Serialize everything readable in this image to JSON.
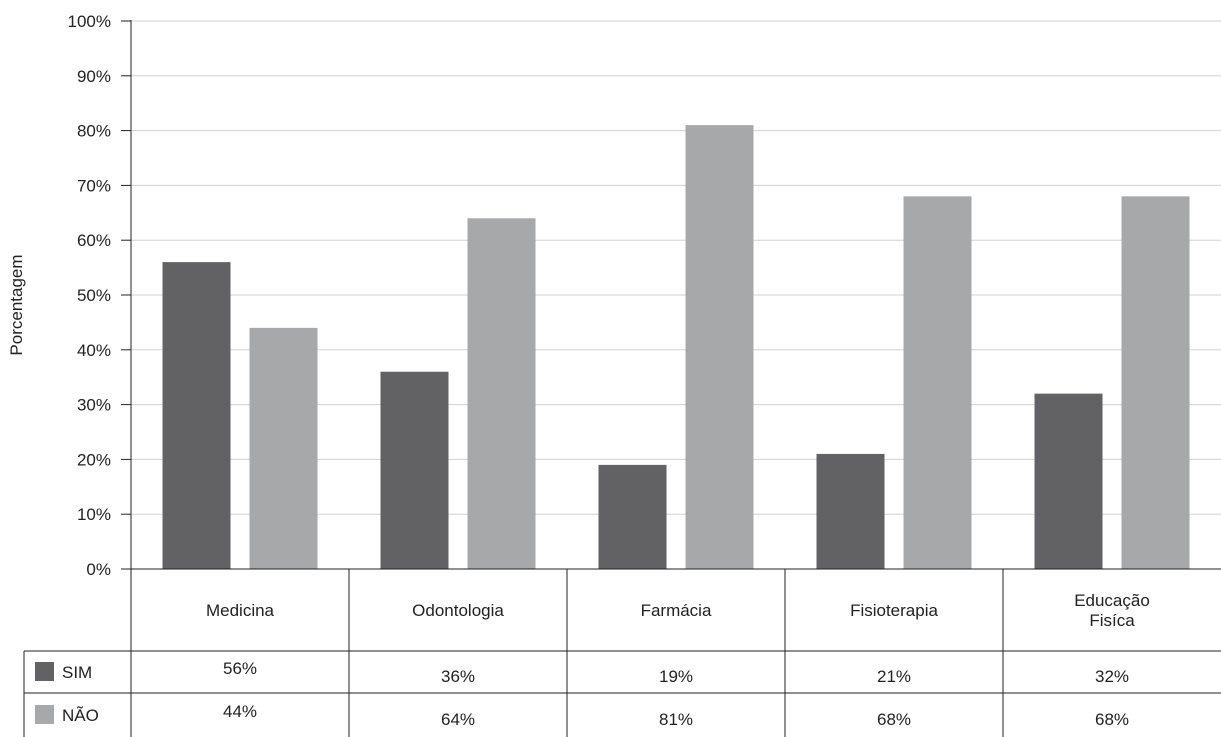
{
  "chart_data": {
    "type": "bar",
    "ylabel": "Porcentagem",
    "ylim": [
      0,
      100
    ],
    "yticks": [
      "0%",
      "10%",
      "20%",
      "30%",
      "40%",
      "50%",
      "60%",
      "70%",
      "80%",
      "90%",
      "100%"
    ],
    "categories": [
      [
        "Medicina"
      ],
      [
        "Odontologia"
      ],
      [
        "Farmácia"
      ],
      [
        "Fisioterapia"
      ],
      [
        "Educação",
        "Fisíca"
      ]
    ],
    "series": [
      {
        "name": "SIM",
        "color": "#626265",
        "values": [
          56,
          36,
          19,
          21,
          32
        ],
        "labels": [
          "56%",
          "36%",
          "19%",
          "21%",
          "32%"
        ]
      },
      {
        "name": "NÃO",
        "color": "#a7a8aa",
        "values": [
          44,
          64,
          81,
          68,
          68
        ],
        "labels": [
          "44%",
          "64%",
          "81%",
          "68%",
          "68%"
        ]
      }
    ],
    "grid": true,
    "legend": "data-table"
  }
}
